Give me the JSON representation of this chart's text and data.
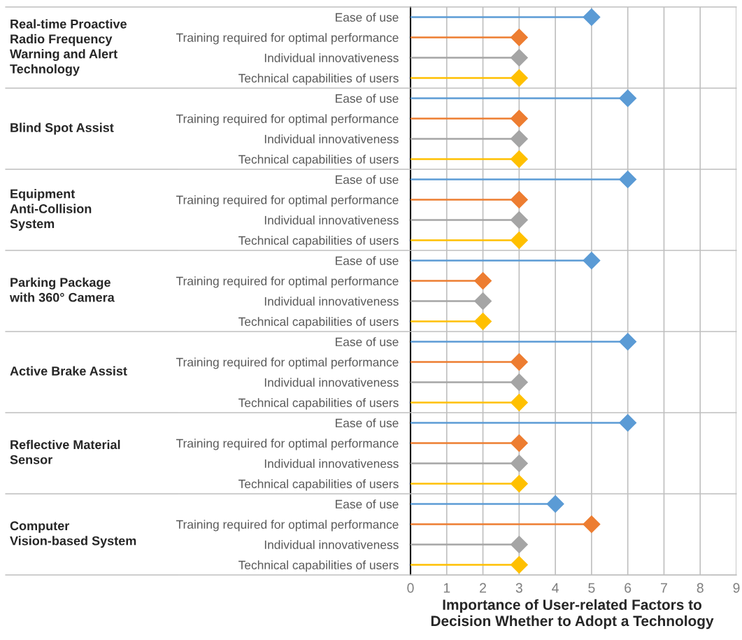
{
  "chart_data": {
    "type": "lollipop",
    "orientation": "horizontal",
    "marker": "diamond",
    "grid": "x",
    "xlabel": "Importance of User-related Factors to Decision Whether to Adopt a Technology",
    "annotations": [
      "Real-time Proactive Radio Frequency Warning and Alert Technology",
      "Blind Spot Assist",
      "Equipment Anti-Collision System",
      "Parking Package with 360° Camera",
      "Active Brake Assist",
      "Reflective Material Sensor",
      "Computer Vision-based System"
    ],
    "categories": [
      "Ease of use",
      "Training required for optimal performance",
      "Individual innovativeness",
      "Technical capabilities of users",
      "Ease of use",
      "Training required for optimal performance",
      "Individual innovativeness",
      "Technical capabilities of users",
      "Ease of use",
      "Training required for optimal performance",
      "Individual innovativeness",
      "Technical capabilities of users",
      "Ease of use",
      "Training required for optimal performance",
      "Individual innovativeness",
      "Technical capabilities of users",
      "Ease of use",
      "Training required for optimal performance",
      "Individual innovativeness",
      "Technical capabilities of users",
      "Ease of use",
      "Training required for optimal performance",
      "Individual innovativeness",
      "Technical capabilities of users",
      "Ease of use",
      "Training required for optimal performance",
      "Individual innovativeness",
      "Technical capabilities of users"
    ],
    "values": [
      5,
      3,
      3,
      3,
      6,
      3,
      3,
      3,
      6,
      3,
      3,
      3,
      5,
      2,
      2,
      2,
      6,
      3,
      3,
      3,
      6,
      3,
      3,
      3,
      4,
      5,
      3,
      3
    ],
    "colors": [
      "#5b9bd5",
      "#ed7d31",
      "#a5a5a5",
      "#ffc000",
      "#5b9bd5",
      "#ed7d31",
      "#a5a5a5",
      "#ffc000",
      "#5b9bd5",
      "#ed7d31",
      "#a5a5a5",
      "#ffc000",
      "#5b9bd5",
      "#ed7d31",
      "#a5a5a5",
      "#ffc000",
      "#5b9bd5",
      "#ed7d31",
      "#a5a5a5",
      "#ffc000",
      "#5b9bd5",
      "#ed7d31",
      "#a5a5a5",
      "#ffc000",
      "#5b9bd5",
      "#ed7d31",
      "#a5a5a5",
      "#ffc000"
    ],
    "xlim": [
      0,
      9
    ],
    "xticks": [
      0,
      1,
      2,
      3,
      4,
      5,
      6,
      7,
      8,
      9
    ]
  }
}
